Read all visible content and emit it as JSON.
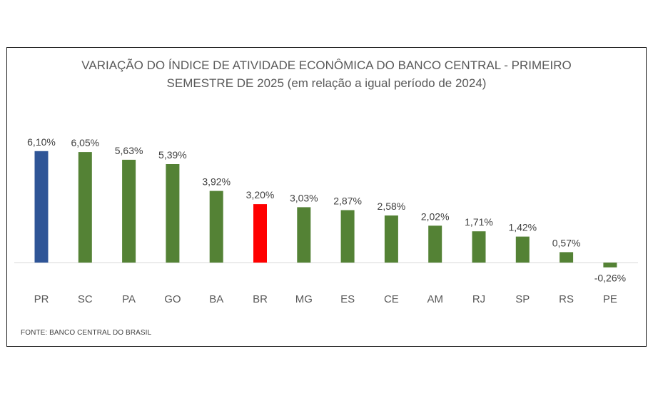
{
  "chart_data": {
    "type": "bar",
    "title_lines": [
      "VARIAÇÃO DO ÍNDICE DE ATIVIDADE ECONÔMICA DO BANCO CENTRAL - PRIMEIRO",
      "SEMESTRE DE 2025 (em relação a igual período de 2024)"
    ],
    "categories": [
      "PR",
      "SC",
      "PA",
      "GO",
      "BA",
      "BR",
      "MG",
      "ES",
      "CE",
      "AM",
      "RJ",
      "SP",
      "RS",
      "PE"
    ],
    "values": [
      6.1,
      6.05,
      5.63,
      5.39,
      3.92,
      3.2,
      3.03,
      2.87,
      2.58,
      2.02,
      1.71,
      1.42,
      0.57,
      -0.26
    ],
    "value_labels": [
      "6,10%",
      "6,05%",
      "5,63%",
      "5,39%",
      "3,92%",
      "3,20%",
      "3,03%",
      "2,87%",
      "2,58%",
      "2,02%",
      "1,71%",
      "1,42%",
      "0,57%",
      "-0,26%"
    ],
    "bar_colors": [
      "#2f5597",
      "#548235",
      "#548235",
      "#548235",
      "#548235",
      "#ff0000",
      "#548235",
      "#548235",
      "#548235",
      "#548235",
      "#548235",
      "#548235",
      "#548235",
      "#548235"
    ],
    "ylim": [
      -0.5,
      6.5
    ],
    "grid": false,
    "legend": "none",
    "source": "FONTE: BANCO CENTRAL DO BRASIL"
  }
}
